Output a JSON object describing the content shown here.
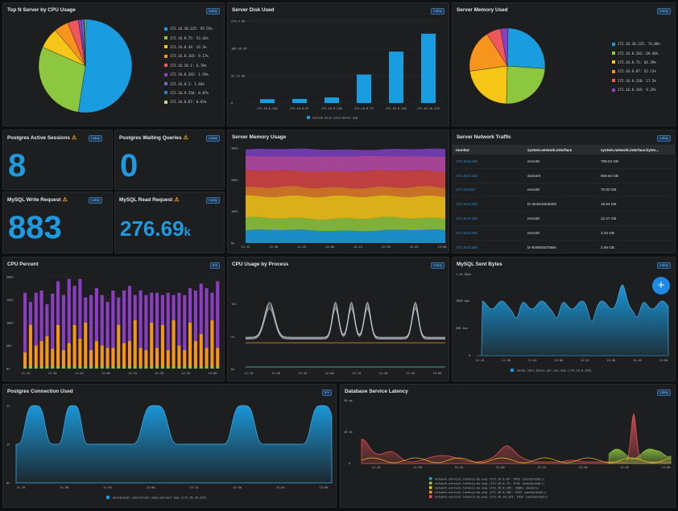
{
  "panels": {
    "top_n": {
      "title": "Top N Server by CPU Usage",
      "badge": "today"
    },
    "disk": {
      "title": "Server Disk Used",
      "badge": "today"
    },
    "memory_pie": {
      "title": "Server Memory Used",
      "badge": "today"
    },
    "pg_sessions": {
      "title": "Postgres Active Sessions",
      "badge": "today",
      "value": "8"
    },
    "pg_waiting": {
      "title": "Postgres Waiting Queries",
      "badge": "today",
      "value": "0"
    },
    "mysql_write": {
      "title": "MySQL Write Request",
      "badge": "today",
      "value": "883"
    },
    "mysql_read": {
      "title": "MySQL Read Request",
      "badge": "today",
      "value": "276.69",
      "unit": "k"
    },
    "mem_usage": {
      "title": "Server Memory Usage"
    },
    "net_traffic": {
      "title": "Server Network Traffic",
      "badge": "today"
    },
    "cpu_percent": {
      "title": "CPU Percent",
      "badge": "5m"
    },
    "cpu_process": {
      "title": "CPU Usage by Process",
      "badge": "today"
    },
    "mysql_sent": {
      "title": "MySQL Sent Bytes",
      "badge": "today",
      "fab": "+"
    },
    "pg_conn": {
      "title": "Postgres Connection Used",
      "badge": "5m"
    },
    "db_latency": {
      "title": "Database Service Latency",
      "badge": "today"
    }
  },
  "colors": {
    "blue": "#1a9ce0",
    "green": "#8dc63f",
    "yellow": "#f5c518",
    "orange": "#f7941d",
    "red": "#f0575a",
    "purple": "#8b3fc0",
    "violet": "#6c6ccf",
    "teal": "#2b7fb8",
    "lightgreen": "#a7e36f"
  },
  "chart_data": [
    {
      "panel": "top_n",
      "type": "pie",
      "series": [
        {
          "name": "172.16.10.225: 95.55%",
          "value": 95.55
        },
        {
          "name": "172.16.8.75: 53.42%",
          "value": 53.42
        },
        {
          "name": "172.16.8.34: 13.3%",
          "value": 13.3
        },
        {
          "name": "172.16.8.165: 9.17%",
          "value": 9.17
        },
        {
          "name": "172.16.10.1: 6.78%",
          "value": 6.78
        },
        {
          "name": "172.16.8.202: 1.91%",
          "value": 1.91
        },
        {
          "name": "172.16.8.2: 1.46%",
          "value": 1.46
        },
        {
          "name": "172.16.9.156: 0.87%",
          "value": 0.87
        },
        {
          "name": "172.16.8.87: 0.83%",
          "value": 0.83
        }
      ]
    },
    {
      "panel": "disk",
      "type": "bar",
      "categories": [
        "172.16.8.202",
        "172.16.8.87",
        "172.16.9.156",
        "172.16.8.75",
        "172.16.8.165",
        "172.16.10.225"
      ],
      "values": [
        13,
        14,
        19,
        97,
        175,
        236
      ],
      "yticks": [
        "279.4 GB",
        "186.26 GB",
        "93.13 GB",
        "0"
      ],
      "ylim": [
        0,
        279.4
      ],
      "legend": "system.disk.used.bytes.avg"
    },
    {
      "panel": "memory_pie",
      "type": "pie",
      "series": [
        {
          "name": "172.16.10.225: 74.06%",
          "value": 74.06
        },
        {
          "name": "172.16.8.202: 69.46%",
          "value": 69.46
        },
        {
          "name": "172.16.8.75: 64.39%",
          "value": 64.39
        },
        {
          "name": "172.16.8.87: 52.12%",
          "value": 52.12
        },
        {
          "name": "172.16.9.156: 17.5%",
          "value": 17.5
        },
        {
          "name": "172.16.8.165: 9.25%",
          "value": 9.25
        }
      ]
    },
    {
      "panel": "mem_usage",
      "type": "area",
      "xticks": [
        "11:15",
        "11:30",
        "11:45",
        "12:00",
        "12:15",
        "12:30",
        "12:45",
        "13:00"
      ],
      "yticks": [
        "300%",
        "200%",
        "100%",
        "0%"
      ],
      "ylim": [
        0,
        300
      ],
      "layers": [
        40,
        38,
        70,
        28,
        52,
        46,
        22
      ]
    },
    {
      "panel": "cpu_percent",
      "type": "bar",
      "stacked": true,
      "xticks": [
        "11:15",
        "11:30",
        "11:45",
        "12:00",
        "12:15",
        "12:30",
        "12:45",
        "13:00"
      ],
      "yticks": [
        "200%",
        "150%",
        "100%",
        "50%",
        "0%"
      ],
      "ylim": [
        0,
        200
      ],
      "orange": [
        30,
        90,
        45,
        55,
        65,
        38,
        90,
        35,
        50,
        90,
        60,
        95,
        35,
        55,
        45,
        40,
        40,
        90,
        50,
        55,
        100,
        40,
        35,
        95,
        40,
        90,
        35,
        100,
        45,
        35,
        95,
        55,
        70,
        40,
        100,
        40
      ],
      "purple": [
        130,
        50,
        115,
        110,
        70,
        120,
        95,
        120,
        140,
        85,
        130,
        55,
        120,
        115,
        110,
        100,
        125,
        60,
        115,
        120,
        55,
        125,
        120,
        65,
        120,
        65,
        125,
        55,
        115,
        120,
        75,
        110,
        110,
        130,
        60,
        145
      ]
    },
    {
      "panel": "cpu_process",
      "type": "line",
      "xticks": [
        "11:15",
        "11:30",
        "11:45",
        "12:00",
        "12:15",
        "12:30",
        "12:45",
        "13:00"
      ],
      "yticks": [
        "15%",
        "5%",
        "0%"
      ]
    },
    {
      "panel": "mysql_sent",
      "type": "area",
      "xticks": [
        "11:15",
        "11:30",
        "11:45",
        "12:00",
        "12:15",
        "12:30",
        "12:45",
        "13:00"
      ],
      "yticks": [
        "1.4k Kbps",
        "1000 bps",
        "500 bps",
        "0"
      ],
      "legend": "mysql.sent.bytes.per.sec.avg (172.16.8.165)"
    },
    {
      "panel": "pg_conn",
      "type": "area",
      "xticks": [
        "11:15",
        "11:30",
        "11:45",
        "12:00",
        "12:15",
        "12:30",
        "12:45",
        "13:00"
      ],
      "yticks": [
        "2%",
        "1%",
        "0%"
      ],
      "legend": "postgresql.connection.used.percent.avg (172.16.10.225)"
    },
    {
      "panel": "db_latency",
      "type": "area",
      "xticks": [
        "11:15",
        "11:30",
        "11:45",
        "12:00",
        "12:15",
        "12:30",
        "12:45",
        "13:00"
      ],
      "yticks": [
        "20 ms",
        "10 ms",
        "0"
      ],
      "legend": [
        "network.service.latency.ms.avg (172.16.8.87: 5432 (postgresql))",
        "network.service.latency.ms.avg (172.16.8.75: 5432 (postgresql))",
        "network.service.latency.ms.avg (172.16.8.165: 3306) (mysql))",
        "network.service.latency.ms.avg (172.16.8.202: 5432 (postgresql))",
        "network.service.latency.ms.avg (172.16.10.225: 5432 (postgresql))"
      ]
    }
  ],
  "network_table": {
    "headers": [
      "monitor",
      "system.network.interface",
      "system.network.interface.bytes..."
    ],
    "rows": [
      [
        "172.16.8.165",
        "ens160",
        "798.04 GB"
      ],
      [
        "172.16.8.165",
        "docker0",
        "509.64 GB"
      ],
      [
        "172.16.8.87",
        "ens160",
        "70.83 GB"
      ],
      [
        "172.16.8.165",
        "br-3e46c93d3d36",
        "18.84 GB"
      ],
      [
        "172.16.9.156",
        "ens160",
        "12.47 GB"
      ],
      [
        "172.16.8.202",
        "ens160",
        "3.33 GB"
      ],
      [
        "172.16.8.165",
        "br-926903d7068c",
        "2.69 GB"
      ]
    ]
  }
}
